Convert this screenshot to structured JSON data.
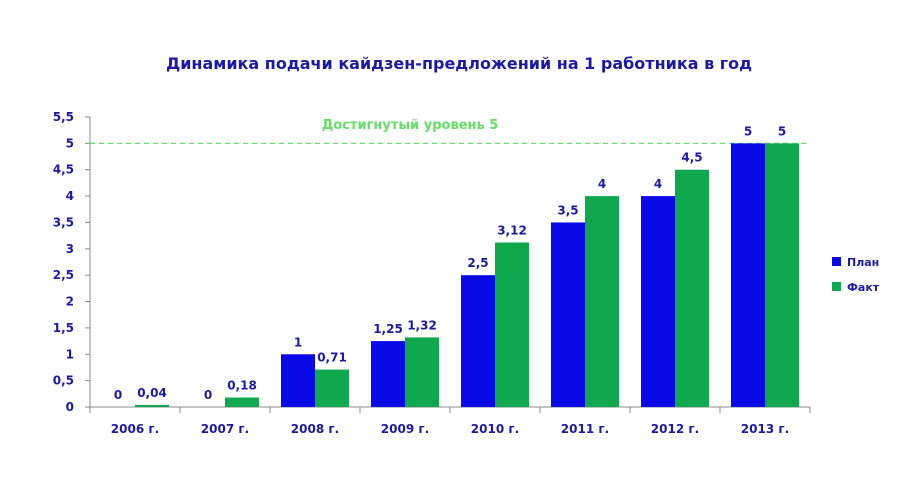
{
  "chart_data": {
    "type": "bar",
    "title": "Динамика подачи кайдзен-предложений на 1 работника в год",
    "categories": [
      "2006 г.",
      "2007 г.",
      "2008 г.",
      "2009 г.",
      "2010 г.",
      "2011 г.",
      "2012 г.",
      "2013 г."
    ],
    "series": [
      {
        "name": "План",
        "color": "#0a0ae6",
        "values": [
          0,
          0,
          1,
          1.25,
          2.5,
          3.5,
          4,
          5
        ],
        "labels": [
          "0",
          "0",
          "1",
          "1,25",
          "2,5",
          "3,5",
          "4",
          "5"
        ]
      },
      {
        "name": "Факт",
        "color": "#10a84e",
        "values": [
          0.04,
          0.18,
          0.71,
          1.32,
          3.12,
          4,
          4.5,
          5
        ],
        "labels": [
          "0,04",
          "0,18",
          "0,71",
          "1,32",
          "3,12",
          "4",
          "4,5",
          "5"
        ]
      }
    ],
    "ylim": [
      0,
      5.5
    ],
    "yticks": [
      0,
      0.5,
      1,
      1.5,
      2,
      2.5,
      3,
      3.5,
      4,
      4.5,
      5,
      5.5
    ],
    "ytick_labels": [
      "0",
      "0,5",
      "1",
      "1,5",
      "2",
      "2,5",
      "3",
      "3,5",
      "4",
      "4,5",
      "5",
      "5,5"
    ],
    "reference_line": {
      "value": 5,
      "label": "Достигнутый  уровень 5",
      "color": "#66dd66",
      "style": "dashed"
    },
    "legend_position": "right",
    "grid": false
  }
}
